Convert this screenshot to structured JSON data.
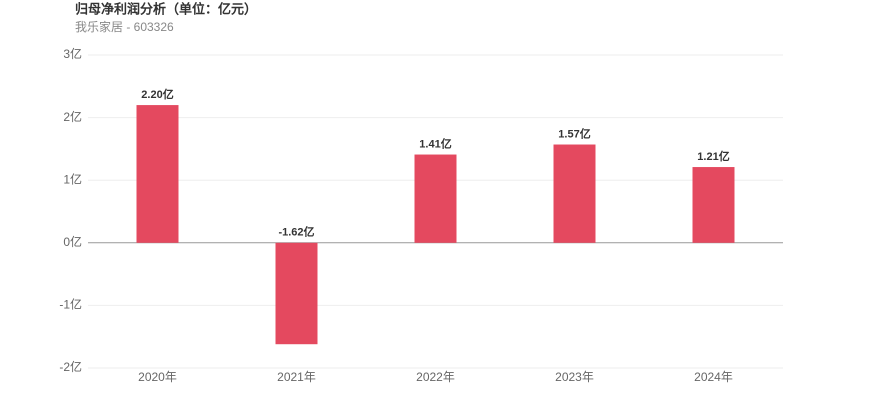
{
  "chart_data": {
    "type": "bar",
    "title": "归母净利润分析（单位：亿元）",
    "subtitle": "我乐家居 - 603326",
    "categories": [
      "2020年",
      "2021年",
      "2022年",
      "2023年",
      "2024年"
    ],
    "values": [
      2.2,
      -1.62,
      1.41,
      1.57,
      1.21
    ],
    "value_labels": [
      "2.20亿",
      "-1.62亿",
      "1.41亿",
      "1.57亿",
      "1.21亿"
    ],
    "color": "#e4495f",
    "ylim": [
      -2,
      3
    ],
    "yticks": [
      {
        "value": 3,
        "label": "3亿"
      },
      {
        "value": 2,
        "label": "2亿"
      },
      {
        "value": 1,
        "label": "1亿"
      },
      {
        "value": 0,
        "label": "0亿"
      },
      {
        "value": -1,
        "label": "-1亿"
      },
      {
        "value": -2,
        "label": "-2亿"
      }
    ],
    "grid": true
  }
}
